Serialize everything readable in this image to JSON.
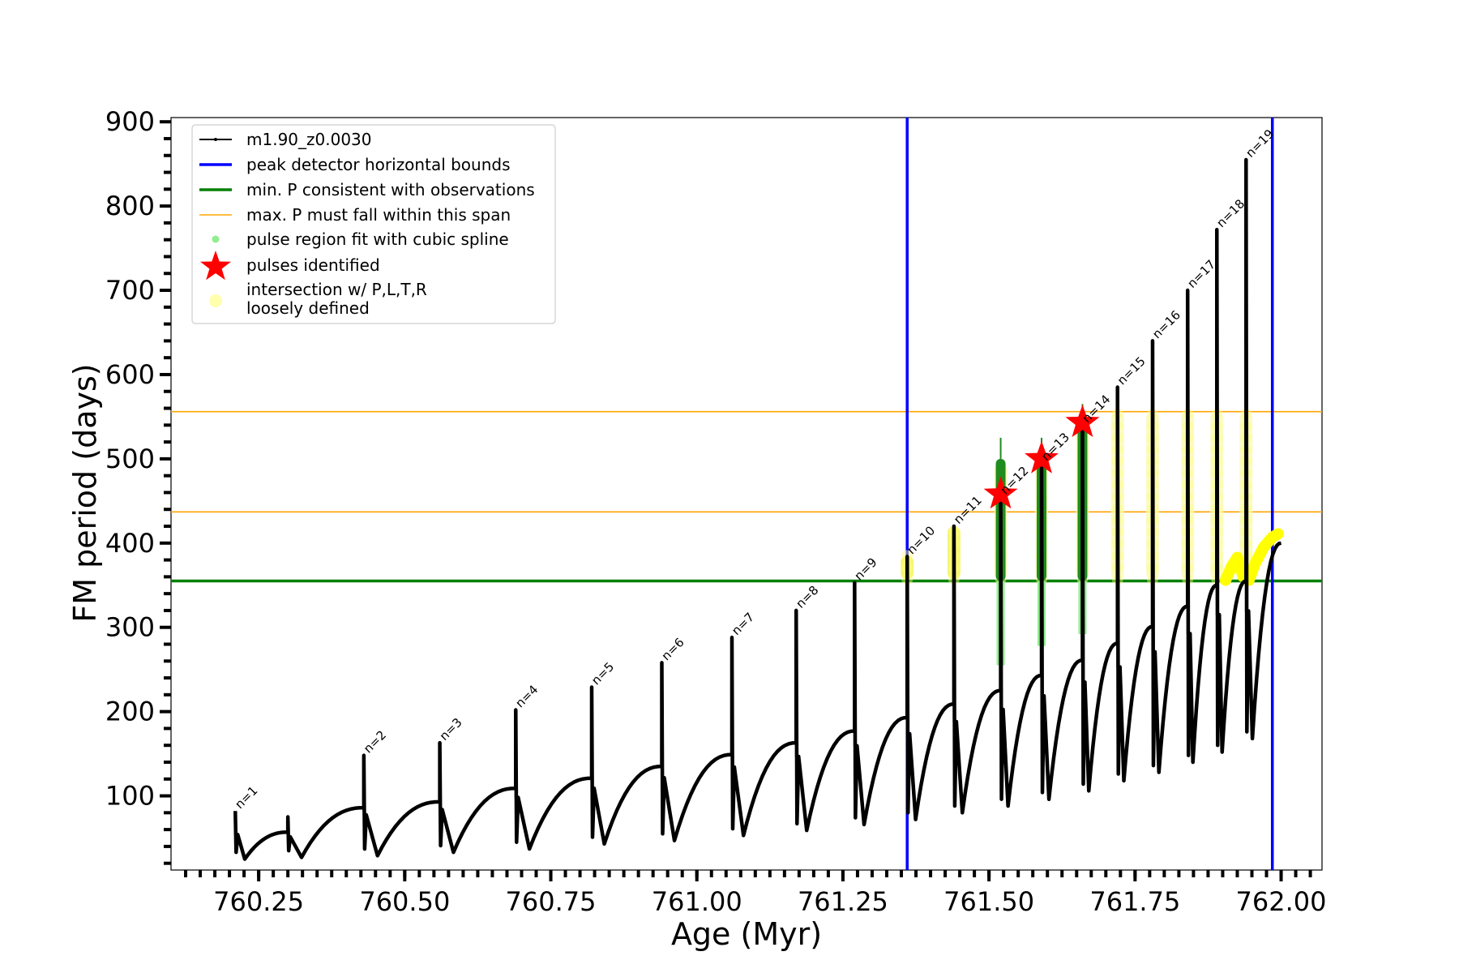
{
  "chart_data": {
    "type": "line",
    "title": "",
    "xlabel": "Age (Myr)",
    "ylabel": "FM period (days)",
    "xlim": [
      760.1,
      762.07
    ],
    "ylim": [
      12,
      905
    ],
    "x_ticks": [
      760.25,
      760.5,
      760.75,
      761.0,
      761.25,
      761.5,
      761.75,
      762.0
    ],
    "x_tick_labels": [
      "760.25",
      "760.50",
      "760.75",
      "761.00",
      "761.25",
      "761.50",
      "761.75",
      "762.00"
    ],
    "y_ticks": [
      100,
      200,
      300,
      400,
      500,
      600,
      700,
      800,
      900
    ],
    "y_tick_labels": [
      "100",
      "200",
      "300",
      "400",
      "500",
      "600",
      "700",
      "800",
      "900"
    ],
    "grid": false,
    "legend_position": "top-left",
    "legend": [
      {
        "label": "m1.90_z0.0030",
        "marker": "line-dot",
        "color": "#000000"
      },
      {
        "label": "peak detector horizontal bounds",
        "marker": "line",
        "color": "#0000ff"
      },
      {
        "label": "min. P consistent with observations",
        "marker": "line",
        "color": "#008000"
      },
      {
        "label": "max. P must fall within this span",
        "marker": "thin-line",
        "color": "#ffa500"
      },
      {
        "label": "pulse region fit with cubic spline",
        "marker": "dot",
        "color": "#90ee90"
      },
      {
        "label": "pulses identified",
        "marker": "star",
        "color": "#ff0000"
      },
      {
        "label": "intersection w/ P,L,T,R",
        "label2": "loosely defined",
        "marker": "circle",
        "color": "#ffff99"
      }
    ],
    "pulses": [
      {
        "n": "n=1",
        "x": 760.21,
        "base": 60,
        "peak": 82,
        "min": 25,
        "prev_end": 30
      },
      {
        "n": "",
        "x": 760.3,
        "base": 57,
        "peak": 75,
        "min": 27,
        "prev_end": 57
      },
      {
        "n": "n=2",
        "x": 760.43,
        "base": 86,
        "peak": 148,
        "min": 29,
        "prev_end": 86
      },
      {
        "n": "n=3",
        "x": 760.56,
        "base": 93,
        "peak": 163,
        "min": 33,
        "prev_end": 93
      },
      {
        "n": "n=4",
        "x": 760.69,
        "base": 109,
        "peak": 202,
        "min": 37,
        "prev_end": 109
      },
      {
        "n": "n=5",
        "x": 760.82,
        "base": 121,
        "peak": 229,
        "min": 43,
        "prev_end": 121
      },
      {
        "n": "n=6",
        "x": 760.94,
        "base": 135,
        "peak": 258,
        "min": 47,
        "prev_end": 135
      },
      {
        "n": "n=7",
        "x": 761.06,
        "base": 149,
        "peak": 288,
        "min": 53,
        "prev_end": 149
      },
      {
        "n": "n=8",
        "x": 761.17,
        "base": 163,
        "peak": 320,
        "min": 59,
        "prev_end": 163
      },
      {
        "n": "n=9",
        "x": 761.27,
        "base": 177,
        "peak": 353,
        "min": 66,
        "prev_end": 177
      },
      {
        "n": "n=10",
        "x": 761.36,
        "base": 193,
        "peak": 384,
        "min": 72,
        "prev_end": 193
      },
      {
        "n": "n=11",
        "x": 761.44,
        "base": 209,
        "peak": 420,
        "min": 80,
        "prev_end": 209
      },
      {
        "n": "n=12",
        "x": 761.52,
        "base": 225,
        "peak": 455,
        "min": 88,
        "prev_end": 225
      },
      {
        "n": "n=13",
        "x": 761.59,
        "base": 243,
        "peak": 495,
        "min": 96,
        "prev_end": 243
      },
      {
        "n": "n=14",
        "x": 761.66,
        "base": 261,
        "peak": 540,
        "min": 106,
        "prev_end": 261
      },
      {
        "n": "n=15",
        "x": 761.72,
        "base": 281,
        "peak": 585,
        "min": 118,
        "prev_end": 281
      },
      {
        "n": "n=16",
        "x": 761.78,
        "base": 301,
        "peak": 640,
        "min": 128,
        "prev_end": 301
      },
      {
        "n": "n=17",
        "x": 761.84,
        "base": 325,
        "peak": 700,
        "min": 140,
        "prev_end": 325
      },
      {
        "n": "n=18",
        "x": 761.89,
        "base": 350,
        "peak": 772,
        "min": 152,
        "prev_end": 350
      },
      {
        "n": "n=19",
        "x": 761.94,
        "base": 355,
        "peak": 855,
        "min": 168,
        "prev_end": 355
      }
    ],
    "vertical_lines": [
      761.36,
      761.985
    ],
    "horizontal_min": 355,
    "horizontal_max": [
      437,
      556
    ],
    "stars": [
      {
        "x": 761.52,
        "y": 458
      },
      {
        "x": 761.59,
        "y": 500
      },
      {
        "x": 761.66,
        "y": 543
      }
    ],
    "spline_regions": [
      {
        "x": 761.52,
        "y0": 255,
        "y1": 500
      },
      {
        "x": 761.59,
        "y0": 278,
        "y1": 500
      },
      {
        "x": 761.66,
        "y0": 292,
        "y1": 540
      }
    ],
    "intersection_regions": [
      {
        "x": 761.36,
        "y0": 357,
        "y1": 385
      },
      {
        "x": 761.44,
        "y0": 357,
        "y1": 420
      },
      {
        "x": 761.52,
        "y0": 357,
        "y1": 495
      },
      {
        "x": 761.59,
        "y0": 357,
        "y1": 495
      },
      {
        "x": 761.66,
        "y0": 357,
        "y1": 540
      },
      {
        "x": 761.72,
        "y0": 357,
        "y1": 555
      },
      {
        "x": 761.78,
        "y0": 357,
        "y1": 555
      },
      {
        "x": 761.84,
        "y0": 357,
        "y1": 555
      },
      {
        "x": 761.89,
        "y0": 357,
        "y1": 555
      },
      {
        "x": 761.94,
        "y0": 357,
        "y1": 555
      }
    ],
    "yellow_tail": [
      {
        "x": 761.905,
        "y": 356
      },
      {
        "x": 761.915,
        "y": 372
      },
      {
        "x": 761.925,
        "y": 383
      },
      {
        "x": 761.935,
        "y": 360
      },
      {
        "x": 761.945,
        "y": 356
      },
      {
        "x": 761.955,
        "y": 375
      },
      {
        "x": 761.97,
        "y": 395
      },
      {
        "x": 761.985,
        "y": 407
      },
      {
        "x": 761.995,
        "y": 411
      }
    ]
  }
}
